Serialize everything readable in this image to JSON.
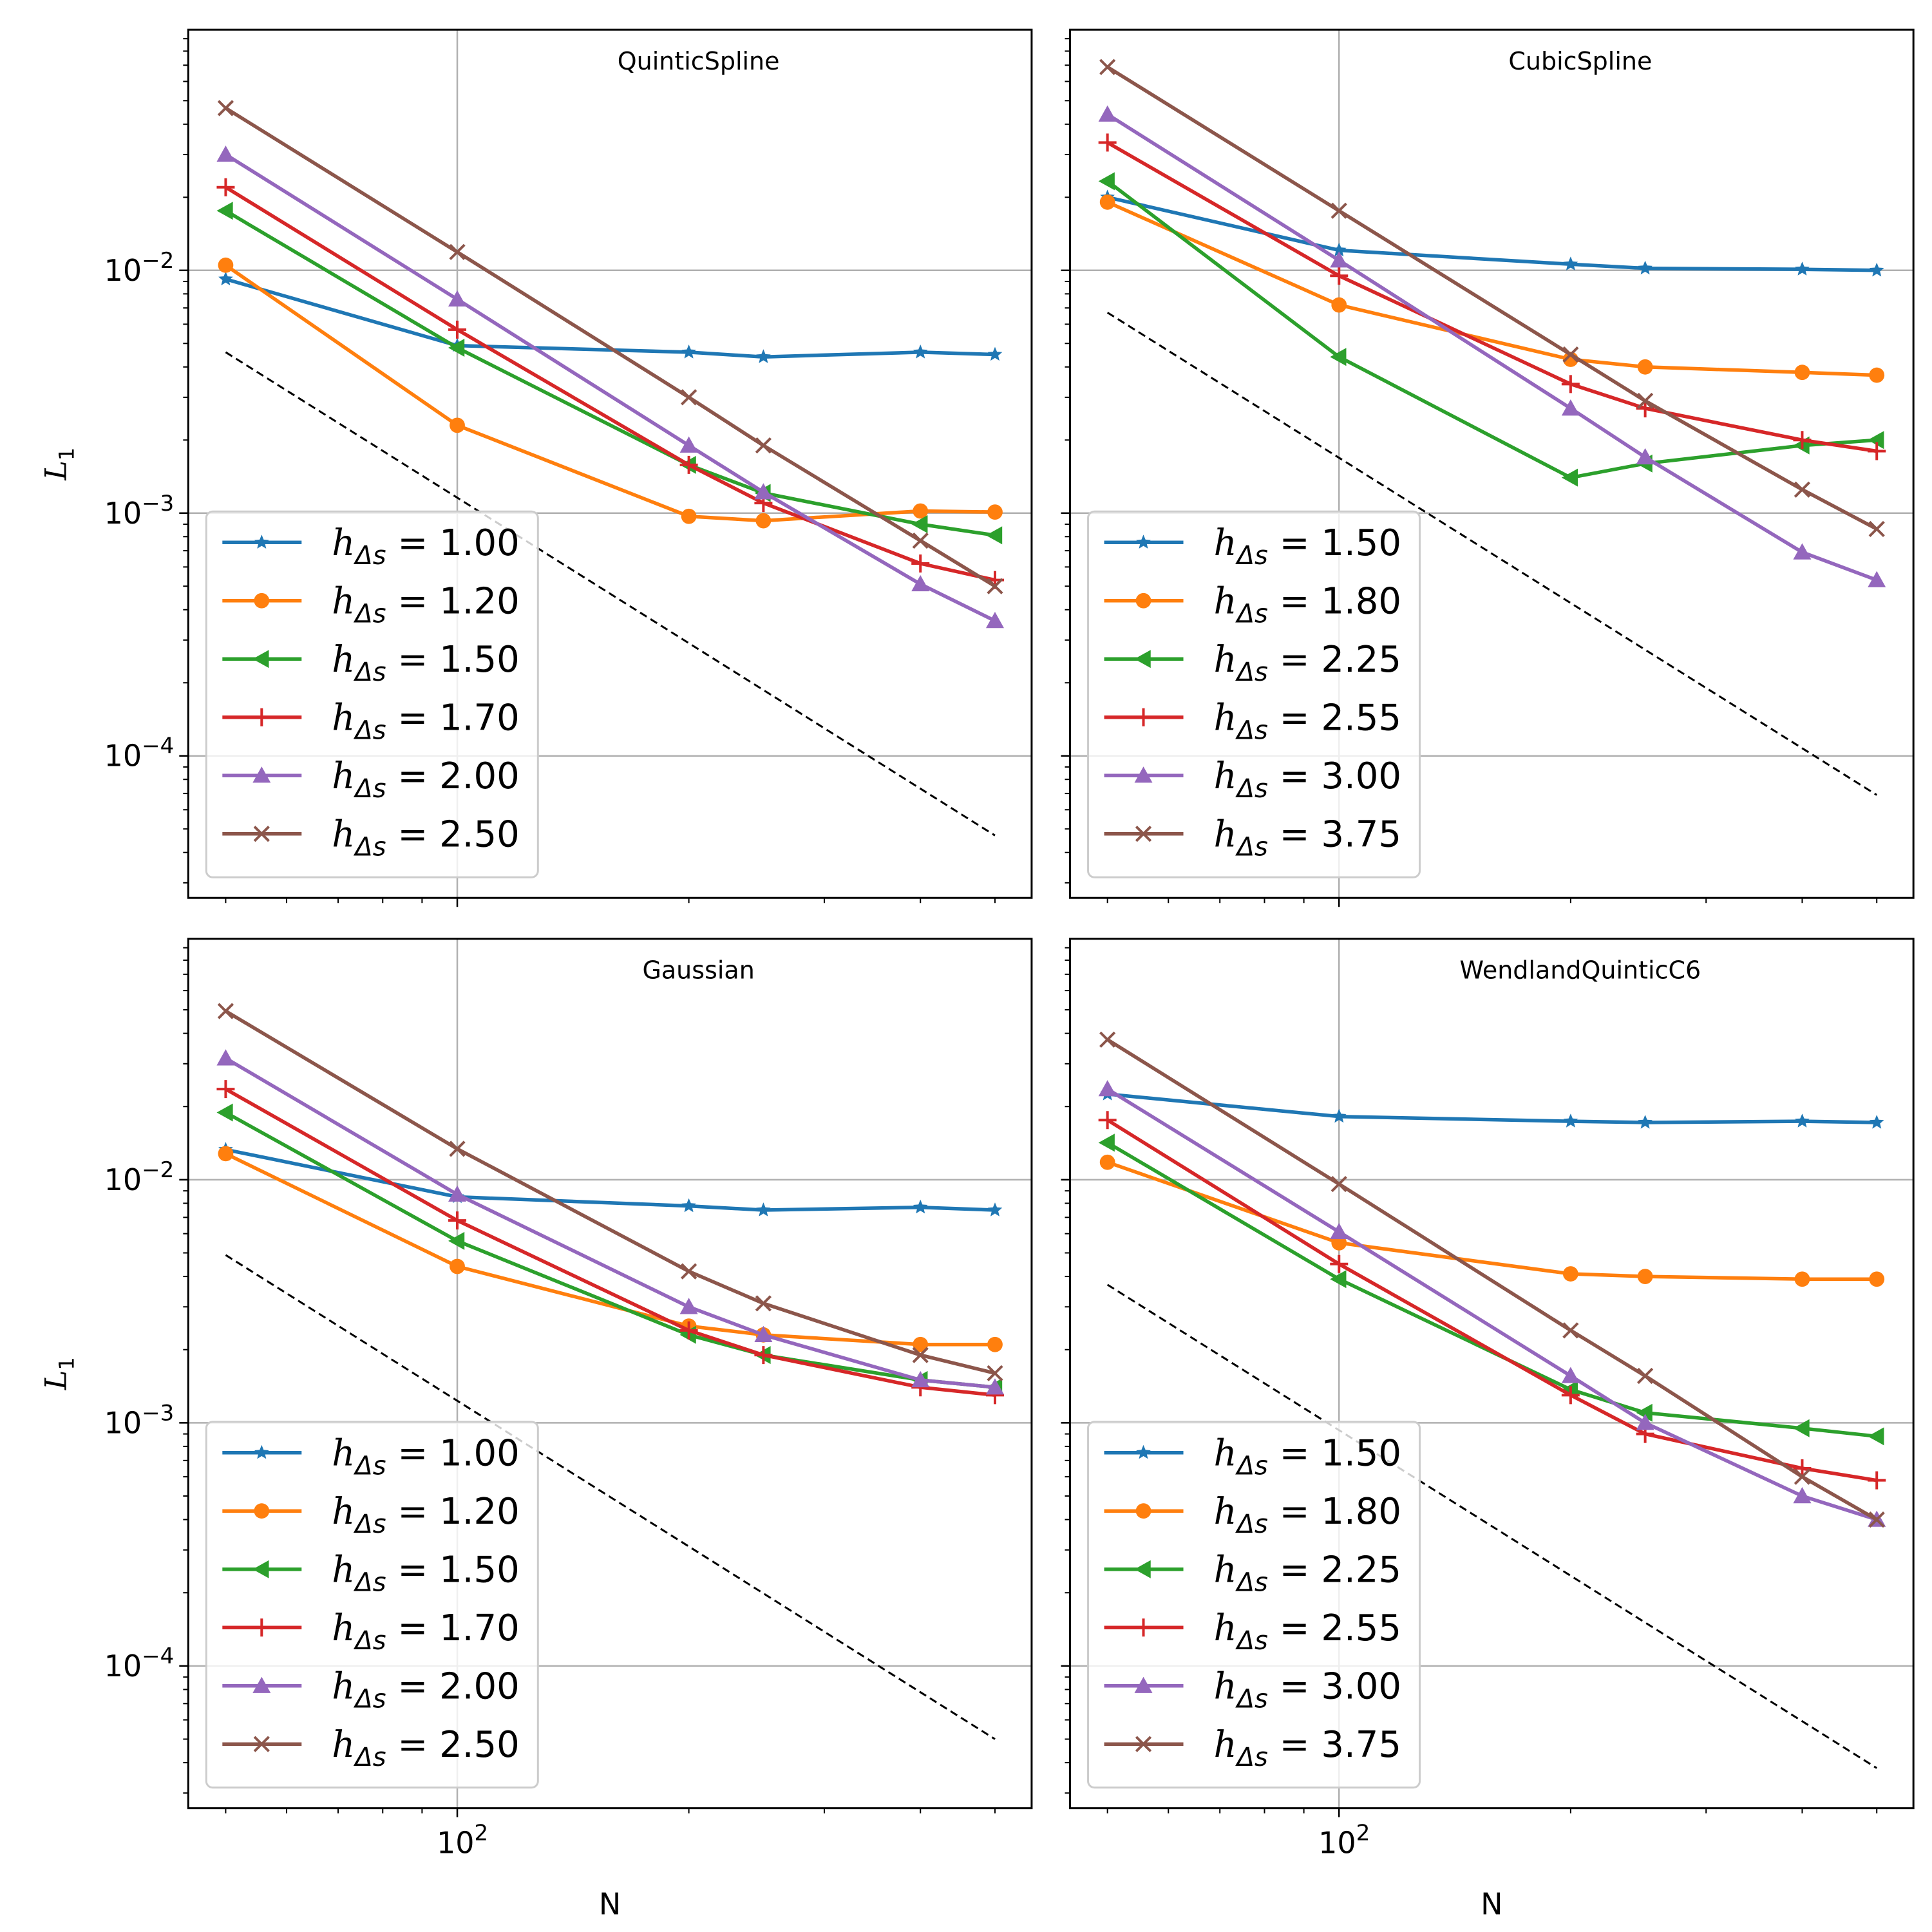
{
  "chart_data": {
    "type": "line",
    "layout": "2x2 grid",
    "xscale": "log",
    "yscale": "log",
    "xlabel": "N",
    "ylabel": "L_1",
    "x": [
      50,
      100,
      200,
      250,
      400,
      500
    ],
    "xlim": [
      44.7,
      558
    ],
    "ylim": [
      2.6e-05,
      0.098
    ],
    "x_major_ticks": [
      {
        "value": 100,
        "label": "10^2"
      }
    ],
    "x_minor_ticks": [
      50,
      60,
      70,
      80,
      90,
      200,
      300,
      400,
      500
    ],
    "y_major_ticks": [
      {
        "value": 0.01,
        "label": "10^-2"
      },
      {
        "value": 0.001,
        "label": "10^-3"
      },
      {
        "value": 0.0001,
        "label": "10^-4"
      }
    ],
    "grid": true,
    "legend_position": "lower-left",
    "legend_label_prefix": "h",
    "legend_label_subscript": "Δs",
    "reference_line": {
      "style": "dashed",
      "color": "#000000",
      "slope_order": -2,
      "x": [
        50,
        500
      ]
    },
    "panels": [
      {
        "title": "QuinticSpline",
        "show_ylabel": true,
        "show_xlabel": false,
        "reference_y": [
          0.0046,
          4.7e-05
        ],
        "series": [
          {
            "name": "1.00",
            "color": "#1f77b4",
            "marker": "star",
            "values": [
              0.0092,
              0.0049,
              0.0046,
              0.0044,
              0.0046,
              0.0045
            ]
          },
          {
            "name": "1.20",
            "color": "#ff7f0e",
            "marker": "circle",
            "values": [
              0.0105,
              0.0023,
              0.00097,
              0.00093,
              0.00102,
              0.00101
            ]
          },
          {
            "name": "1.50",
            "color": "#2ca02c",
            "marker": "triangle-left",
            "values": [
              0.0176,
              0.0048,
              0.00158,
              0.00121,
              0.0009,
              0.00081
            ]
          },
          {
            "name": "1.70",
            "color": "#d62728",
            "marker": "plus",
            "values": [
              0.022,
              0.0057,
              0.00158,
              0.0011,
              0.00062,
              0.00053
            ]
          },
          {
            "name": "2.00",
            "color": "#9467bd",
            "marker": "triangle-up",
            "values": [
              0.03,
              0.0076,
              0.0019,
              0.00122,
              0.00051,
              0.00036
            ]
          },
          {
            "name": "2.50",
            "color": "#8c564b",
            "marker": "x",
            "values": [
              0.0466,
              0.0119,
              0.003,
              0.0019,
              0.00077,
              0.0005
            ]
          }
        ]
      },
      {
        "title": "CubicSpline",
        "show_ylabel": false,
        "show_xlabel": false,
        "reference_y": [
          0.0067,
          6.9e-05
        ],
        "series": [
          {
            "name": "1.50",
            "color": "#1f77b4",
            "marker": "star",
            "values": [
              0.02,
              0.0121,
              0.0106,
              0.0102,
              0.0101,
              0.01
            ]
          },
          {
            "name": "1.80",
            "color": "#ff7f0e",
            "marker": "circle",
            "values": [
              0.0191,
              0.0072,
              0.0043,
              0.004,
              0.0038,
              0.0037
            ]
          },
          {
            "name": "2.25",
            "color": "#2ca02c",
            "marker": "triangle-left",
            "values": [
              0.0233,
              0.0044,
              0.0014,
              0.0016,
              0.0019,
              0.002
            ]
          },
          {
            "name": "2.55",
            "color": "#d62728",
            "marker": "plus",
            "values": [
              0.0336,
              0.0095,
              0.0034,
              0.0027,
              0.002,
              0.0018
            ]
          },
          {
            "name": "3.00",
            "color": "#9467bd",
            "marker": "triangle-up",
            "values": [
              0.0439,
              0.011,
              0.0027,
              0.0017,
              0.00069,
              0.00053
            ]
          },
          {
            "name": "3.75",
            "color": "#8c564b",
            "marker": "x",
            "values": [
              0.0688,
              0.0176,
              0.0045,
              0.0029,
              0.00125,
              0.00086
            ]
          }
        ]
      },
      {
        "title": "Gaussian",
        "show_ylabel": true,
        "show_xlabel": true,
        "reference_y": [
          0.0049,
          5e-05
        ],
        "series": [
          {
            "name": "1.00",
            "color": "#1f77b4",
            "marker": "star",
            "values": [
              0.0133,
              0.0085,
              0.0078,
              0.0075,
              0.0077,
              0.0075
            ]
          },
          {
            "name": "1.20",
            "color": "#ff7f0e",
            "marker": "circle",
            "values": [
              0.0128,
              0.0044,
              0.0025,
              0.0023,
              0.0021,
              0.0021
            ]
          },
          {
            "name": "1.50",
            "color": "#2ca02c",
            "marker": "triangle-left",
            "values": [
              0.0189,
              0.0056,
              0.0023,
              0.0019,
              0.0015,
              0.0014
            ]
          },
          {
            "name": "1.70",
            "color": "#d62728",
            "marker": "plus",
            "values": [
              0.0236,
              0.0068,
              0.0024,
              0.0019,
              0.0014,
              0.0013
            ]
          },
          {
            "name": "2.00",
            "color": "#9467bd",
            "marker": "triangle-up",
            "values": [
              0.0316,
              0.0087,
              0.003,
              0.0023,
              0.0015,
              0.0014
            ]
          },
          {
            "name": "2.50",
            "color": "#8c564b",
            "marker": "x",
            "values": [
              0.0494,
              0.0134,
              0.0042,
              0.0031,
              0.0019,
              0.0016
            ]
          }
        ]
      },
      {
        "title": "WendlandQuinticC6",
        "show_ylabel": false,
        "show_xlabel": true,
        "reference_y": [
          0.0037,
          3.8e-05
        ],
        "series": [
          {
            "name": "1.50",
            "color": "#1f77b4",
            "marker": "star",
            "values": [
              0.0225,
              0.0182,
              0.0174,
              0.0172,
              0.0174,
              0.0172
            ]
          },
          {
            "name": "1.80",
            "color": "#ff7f0e",
            "marker": "circle",
            "values": [
              0.0118,
              0.0055,
              0.0041,
              0.004,
              0.0039,
              0.0039
            ]
          },
          {
            "name": "2.25",
            "color": "#2ca02c",
            "marker": "triangle-left",
            "values": [
              0.0142,
              0.0039,
              0.00137,
              0.0011,
              0.00095,
              0.00088
            ]
          },
          {
            "name": "2.55",
            "color": "#d62728",
            "marker": "plus",
            "values": [
              0.0176,
              0.0045,
              0.0013,
              0.0009,
              0.00065,
              0.00058
            ]
          },
          {
            "name": "3.00",
            "color": "#9467bd",
            "marker": "triangle-up",
            "values": [
              0.0236,
              0.0061,
              0.00156,
              0.001,
              0.0005,
              0.0004
            ]
          },
          {
            "name": "3.75",
            "color": "#8c564b",
            "marker": "x",
            "values": [
              0.0377,
              0.0096,
              0.0024,
              0.00156,
              0.0006,
              0.0004
            ]
          }
        ]
      }
    ]
  }
}
